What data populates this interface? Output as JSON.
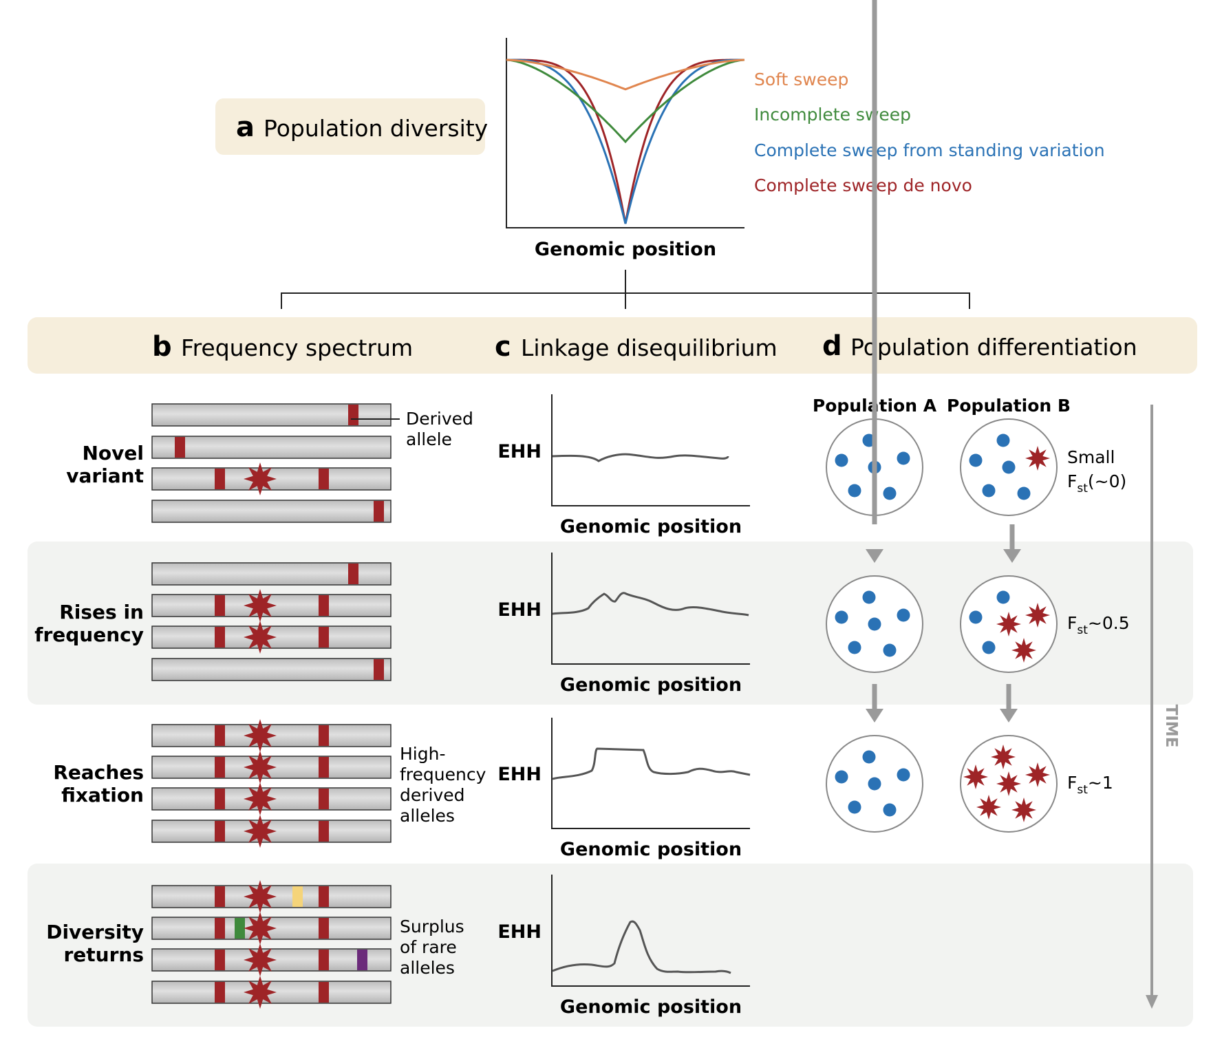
{
  "panel_a": {
    "letter": "a",
    "title": "Population diversity",
    "xlabel": "Genomic position",
    "legend": [
      {
        "label": "Soft sweep",
        "color": "#e0854e",
        "min": 0.82
      },
      {
        "label": "Incomplete sweep",
        "color": "#3f8a3c",
        "min": 0.5
      },
      {
        "label": "Complete sweep from standing variation",
        "color": "#2a72b5",
        "min": 0.0
      },
      {
        "label": "Complete sweep de novo",
        "color": "#9e2427",
        "min": 0.0
      }
    ]
  },
  "header": {
    "b": {
      "letter": "b",
      "title": "Frequency spectrum"
    },
    "c": {
      "letter": "c",
      "title": "Linkage disequilibrium"
    },
    "d": {
      "letter": "d",
      "title": "Population differentiation"
    }
  },
  "rows": [
    {
      "line1": "Novel",
      "line2": "variant"
    },
    {
      "line1": "Rises in",
      "line2": "frequency"
    },
    {
      "line1": "Reaches",
      "line2": "fixation"
    },
    {
      "line1": "Diversity",
      "line2": "returns"
    }
  ],
  "annotations": {
    "derived": [
      "Derived",
      "allele"
    ],
    "high_freq": [
      "High-",
      "frequency",
      "derived",
      "alleles"
    ],
    "surplus": [
      "Surplus",
      "of rare",
      "alleles"
    ]
  },
  "ehh": {
    "ylabel": "EHH",
    "xlabel": "Genomic position"
  },
  "populations": {
    "a_label": "Population A",
    "b_label": "Population B",
    "stage1_prefix": "Small",
    "fst_sub": "st",
    "fst_values": [
      "(~0)",
      "~0.5",
      "~1"
    ],
    "derived_counts_b": [
      1,
      3,
      6
    ],
    "time_label": "TIME"
  },
  "colors": {
    "allele": "#9e2427",
    "blue_dot": "#2a72b5",
    "banner": "#f6eedc",
    "row_shade": "#f2f3f1",
    "chrom": "#c9c9c9",
    "arrow": "#9a9a9a",
    "rare1": "#f5d47a",
    "rare2": "#3f8a3c",
    "rare3": "#6b2a7a"
  }
}
